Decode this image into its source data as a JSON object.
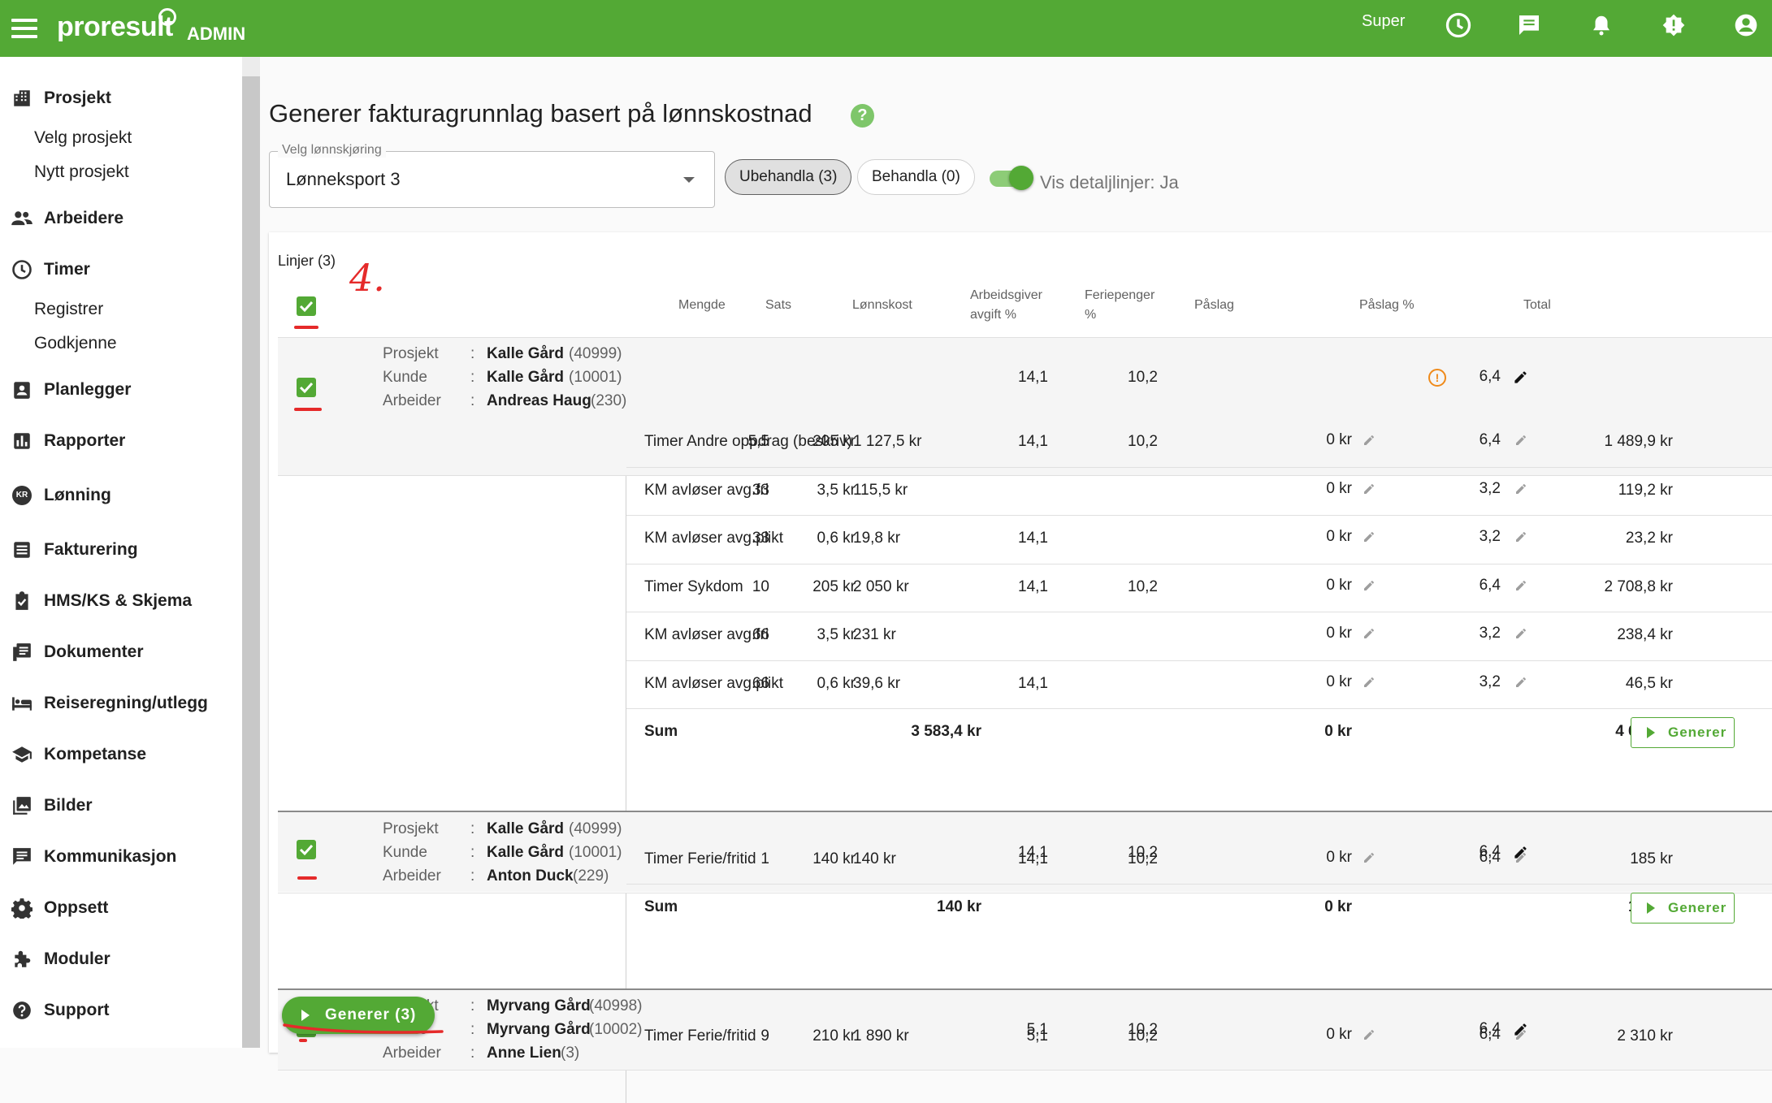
{
  "topbar": {
    "brand": "proresult",
    "admin": "ADMIN",
    "user": "Super",
    "icons": [
      "clock-icon",
      "chat-icon",
      "bell-icon",
      "alert-icon",
      "account-icon"
    ],
    "color": "#53a935"
  },
  "sidebar": {
    "prosjekt": "Prosjekt",
    "velg_prosjekt": "Velg prosjekt",
    "nytt_prosjekt": "Nytt prosjekt",
    "arbeidere": "Arbeidere",
    "timer": "Timer",
    "registrer": "Registrer",
    "godkjenne": "Godkjenne",
    "planlegger": "Planlegger",
    "rapporter": "Rapporter",
    "lonning": "Lønning",
    "fakturering": "Fakturering",
    "hms": "HMS/KS & Skjema",
    "dokumenter": "Dokumenter",
    "reise": "Reiseregning/utlegg",
    "kompetanse": "Kompetanse",
    "bilder": "Bilder",
    "kommunikasjon": "Kommunikasjon",
    "oppsett": "Oppsett",
    "moduler": "Moduler",
    "support": "Support",
    "kr_badge": "KR"
  },
  "main": {
    "title": "Generer fakturagrunnlag basert på lønnskostnad",
    "help": "?",
    "select_label": "Velg lønnskjøring",
    "select_value": "Lønneksport 3",
    "chip_unhandled": "Ubehandla (3)",
    "chip_handled": "Behandla (0)",
    "toggle_label": "Vis detaljlinjer: Ja",
    "lines_title": "Linjer (3)",
    "annotation": "4."
  },
  "table": {
    "headers": {
      "mengde": "Mengde",
      "sats": "Sats",
      "lonnskost": "Lønnskost",
      "arbeidsgiver1": "Arbeidsgiver",
      "arbeidsgiver2": "avgift %",
      "feriepenger1": "Feriepenger",
      "feriepenger2": "%",
      "paslag": "Påslag",
      "paslag_pct": "Påslag %",
      "total": "Total"
    },
    "meta_labels": {
      "prosjekt": "Prosjekt",
      "kunde": "Kunde",
      "arbeider": "Arbeider",
      "colon": ":"
    },
    "groups": [
      {
        "prosjekt": "Kalle Gård",
        "prosjekt_id": "(40999)",
        "kunde": "Kalle Gård",
        "kunde_id": "(10001)",
        "arbeider": "Andreas Haug",
        "arbeider_id": "(230)",
        "aga": "14,1",
        "ferie": "10,2",
        "paslag_pct": "6,4",
        "warning": true,
        "rows": [
          {
            "name": "Timer Andre oppdrag (beskriv)",
            "mengde": "5,5",
            "sats": "205 kr",
            "lonnskost": "1 127,5 kr",
            "aga": "14,1",
            "ferie": "10,2",
            "paslag": "0 kr",
            "paslag_pct": "6,4",
            "total": "1 489,9 kr"
          },
          {
            "name": "KM avløser avg.fri",
            "mengde": "33",
            "sats": "3,5 kr",
            "lonnskost": "115,5 kr",
            "aga": "",
            "ferie": "",
            "paslag": "0 kr",
            "paslag_pct": "3,2",
            "total": "119,2 kr"
          },
          {
            "name": "KM avløser avg.plikt",
            "mengde": "33",
            "sats": "0,6 kr",
            "lonnskost": "19,8 kr",
            "aga": "14,1",
            "ferie": "",
            "paslag": "0 kr",
            "paslag_pct": "3,2",
            "total": "23,2 kr"
          },
          {
            "name": "Timer Sykdom",
            "mengde": "10",
            "sats": "205 kr",
            "lonnskost": "2 050 kr",
            "aga": "14,1",
            "ferie": "10,2",
            "paslag": "0 kr",
            "paslag_pct": "6,4",
            "total": "2 708,8 kr"
          },
          {
            "name": "KM avløser avg.fri",
            "mengde": "66",
            "sats": "3,5 kr",
            "lonnskost": "231 kr",
            "aga": "",
            "ferie": "",
            "paslag": "0 kr",
            "paslag_pct": "3,2",
            "total": "238,4 kr"
          },
          {
            "name": "KM avløser avg.plikt",
            "mengde": "66",
            "sats": "0,6 kr",
            "lonnskost": "39,6 kr",
            "aga": "14,1",
            "ferie": "",
            "paslag": "0 kr",
            "paslag_pct": "3,2",
            "total": "46,5 kr"
          }
        ],
        "sum": {
          "label": "Sum",
          "lonnskost": "3 583,4 kr",
          "paslag": "0 kr",
          "total": "4 626 kr",
          "button": "Generer"
        }
      },
      {
        "prosjekt": "Kalle Gård",
        "prosjekt_id": "(40999)",
        "kunde": "Kalle Gård",
        "kunde_id": "(10001)",
        "arbeider": "Anton Duck",
        "arbeider_id": "(229)",
        "aga": "14,1",
        "ferie": "10,2",
        "paslag_pct": "6,4",
        "warning": false,
        "rows": [
          {
            "name": "Timer Ferie/fritid",
            "mengde": "1",
            "sats": "140 kr",
            "lonnskost": "140 kr",
            "aga": "14,1",
            "ferie": "10,2",
            "paslag": "0 kr",
            "paslag_pct": "6,4",
            "total": "185 kr"
          }
        ],
        "sum": {
          "label": "Sum",
          "lonnskost": "140 kr",
          "paslag": "0 kr",
          "total": "185 kr",
          "button": "Generer"
        }
      },
      {
        "prosjekt": "Myrvang Gård",
        "prosjekt_id": "(40998)",
        "kunde": "Myrvang Gård",
        "kunde_id": "(10002)",
        "arbeider": "Anne Lien",
        "arbeider_id": "(3)",
        "aga": "5,1",
        "ferie": "10,2",
        "paslag_pct": "6,4",
        "warning": false,
        "rows": [
          {
            "name": "Timer Ferie/fritid",
            "mengde": "9",
            "sats": "210 kr",
            "lonnskost": "1 890 kr",
            "aga": "5,1",
            "ferie": "10,2",
            "paslag": "0 kr",
            "paslag_pct": "6,4",
            "total": "2 310 kr"
          }
        ]
      }
    ]
  },
  "fab": {
    "label": "Generer (3)"
  }
}
